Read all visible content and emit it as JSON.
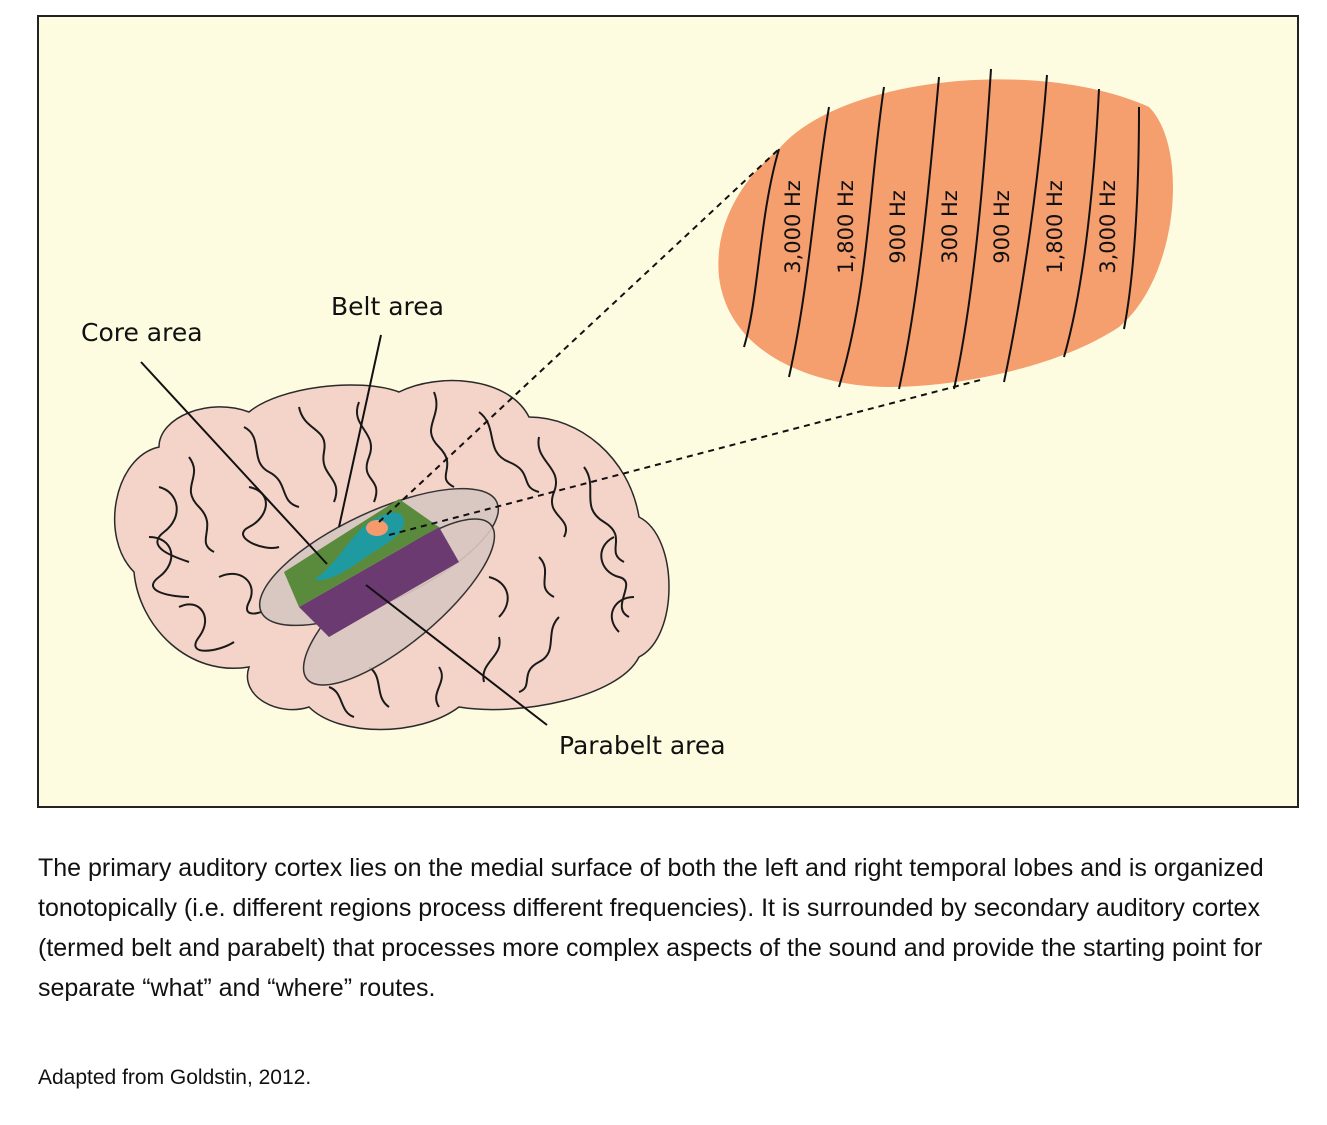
{
  "diagram": {
    "labels": {
      "core": "Core area",
      "belt": "Belt area",
      "parabelt": "Parabelt area"
    },
    "frequencies": [
      "3,000 Hz",
      "1,800 Hz",
      "900 Hz",
      "300 Hz",
      "900 Hz",
      "1,800 Hz",
      "3,000 Hz"
    ],
    "colors": {
      "background": "#fdfce0",
      "brain": "#f4d3c8",
      "core": "#f49a6c",
      "belt_inner": "#1f9aa0",
      "belt": "#5a8a3c",
      "parabelt": "#6b3a70",
      "lobe_overlay": "#d9c7c2"
    }
  },
  "caption": "The primary auditory cortex lies on the medial surface of both the left and right temporal lobes and is organized tonotopically (i.e. different regions process different frequencies). It is surrounded by secondary auditory cortex (termed belt and parabelt) that processes more complex aspects of the sound and provide the starting point for separate “what” and “where” routes.",
  "source": "Adapted from Goldstin, 2012."
}
